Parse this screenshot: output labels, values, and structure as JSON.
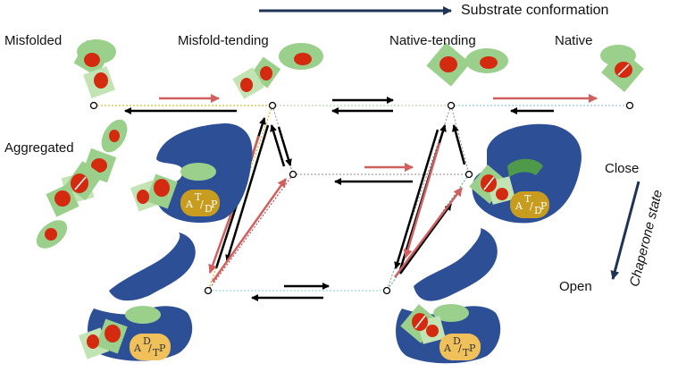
{
  "axes": {
    "substrate_axis_label": "Substrate conformation",
    "chaperone_axis_label": "Chaperone state"
  },
  "states": {
    "misfolded": "Misfolded",
    "misfold_tending": "Misfold-tending",
    "native_tending": "Native-tending",
    "native": "Native",
    "aggregated": "Aggregated"
  },
  "chaperone_states": {
    "close": "Close",
    "open": "Open"
  },
  "nucleotides": {
    "closed_state": {
      "a": "A",
      "sup": "T",
      "slash": "/",
      "sub": "D",
      "p": "P"
    },
    "open_state": {
      "a": "A",
      "sup": "D",
      "slash": "/",
      "sub": "T",
      "p": "P"
    }
  },
  "colors": {
    "chaperone_blue": "#2d4f96",
    "substrate_green": "#9bd08c",
    "substrate_green_light": "#c2e4b4",
    "core_red": "#d42a10",
    "nucleotide_gold": "#c89c1e",
    "arrow_black": "#000000",
    "arrow_red": "#d06060",
    "axis_navy": "#1f3354"
  }
}
